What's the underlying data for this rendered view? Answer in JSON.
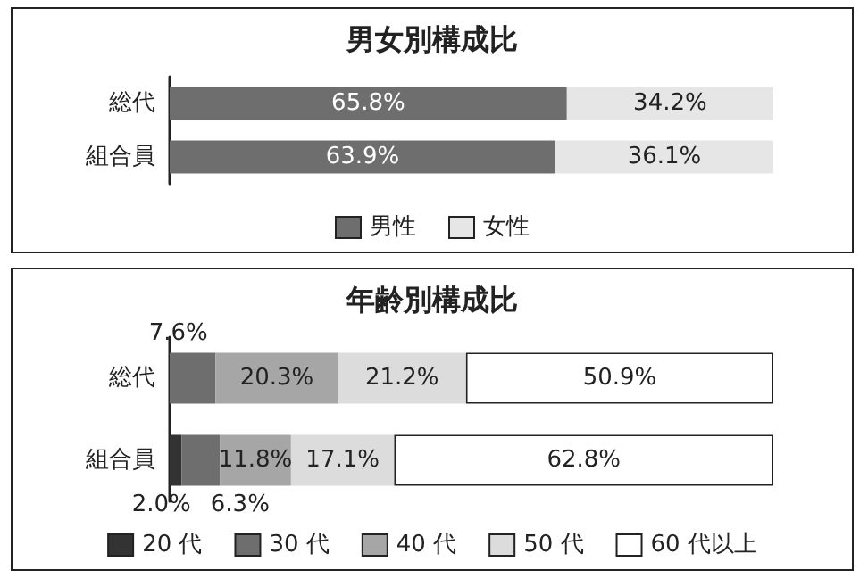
{
  "chart_data": [
    {
      "type": "bar",
      "orientation": "horizontal",
      "stacked": true,
      "title": "男女別構成比",
      "categories": [
        "総代",
        "組合員"
      ],
      "tick_labels": "y",
      "legend": "bottom",
      "series": [
        {
          "name": "男性",
          "color": "#6e6e6e",
          "values": [
            65.8,
            63.9
          ],
          "value_labels": [
            "65.8%",
            "63.9%"
          ]
        },
        {
          "name": "女性",
          "color": "#e6e6e6",
          "values": [
            34.2,
            36.1
          ],
          "value_labels": [
            "34.2%",
            "36.1%"
          ]
        }
      ]
    },
    {
      "type": "bar",
      "orientation": "horizontal",
      "stacked": true,
      "title": "年齢別構成比",
      "categories": [
        "総代",
        "組合員"
      ],
      "tick_labels": "y",
      "legend": "bottom",
      "series": [
        {
          "name": "20 代",
          "color": "#333333",
          "values": [
            null,
            2.0
          ],
          "value_labels": [
            null,
            "2.0%"
          ]
        },
        {
          "name": "30 代",
          "color": "#6e6e6e",
          "values": [
            7.6,
            6.3
          ],
          "value_labels": [
            "7.6%",
            "6.3%"
          ]
        },
        {
          "name": "40 代",
          "color": "#a6a6a6",
          "values": [
            20.3,
            11.8
          ],
          "value_labels": [
            "20.3%",
            "11.8%"
          ]
        },
        {
          "name": "50 代",
          "color": "#dcdcdc",
          "values": [
            21.2,
            17.1
          ],
          "value_labels": [
            "21.2%",
            "17.1%"
          ]
        },
        {
          "name": "60 代以上",
          "color": "#ffffff",
          "values": [
            50.9,
            62.8
          ],
          "value_labels": [
            "50.9%",
            "62.8%"
          ]
        }
      ]
    }
  ]
}
